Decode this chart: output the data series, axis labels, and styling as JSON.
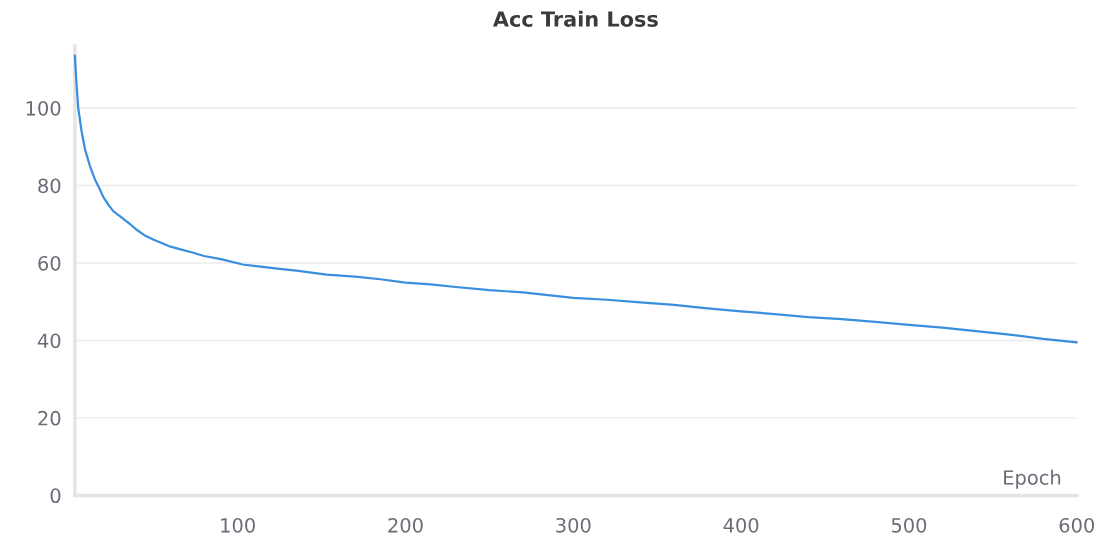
{
  "chart_data": {
    "type": "line",
    "title": "Acc Train Loss",
    "xlabel": "Epoch",
    "series": [
      {
        "color": "#3a8ede",
        "x": [
          3,
          4,
          5,
          7,
          9,
          12,
          15,
          17,
          20,
          23,
          26,
          30,
          33,
          36,
          40,
          45,
          50,
          54,
          60,
          66,
          73,
          80,
          90,
          103,
          115,
          125,
          135,
          153,
          170,
          185,
          200,
          215,
          230,
          250,
          270,
          285,
          300,
          320,
          340,
          360,
          380,
          400,
          420,
          440,
          460,
          480,
          500,
          520,
          540,
          560,
          580,
          600
        ],
        "values": [
          113.5,
          106,
          100,
          94,
          89.4,
          85,
          81.5,
          79.8,
          77,
          75,
          73.3,
          72,
          71,
          70,
          68.5,
          67,
          66,
          65.3,
          64.2,
          63.5,
          62.7,
          61.8,
          61,
          59.6,
          59,
          58.5,
          58,
          57,
          56.5,
          55.8,
          54.9,
          54.5,
          53.8,
          53,
          52.4,
          51.7,
          51,
          50.5,
          49.8,
          49.2,
          48.3,
          47.5,
          46.8,
          46,
          45.5,
          44.8,
          44,
          43.3,
          42.4,
          41.5,
          40.4,
          39.5
        ]
      }
    ],
    "xlim": [
      3,
      600
    ],
    "ylim": [
      0,
      116
    ],
    "xticks": [
      100,
      200,
      300,
      400,
      500,
      600
    ],
    "yticks": [
      0,
      20,
      40,
      60,
      80,
      100
    ],
    "grid": "y",
    "legend": false
  }
}
